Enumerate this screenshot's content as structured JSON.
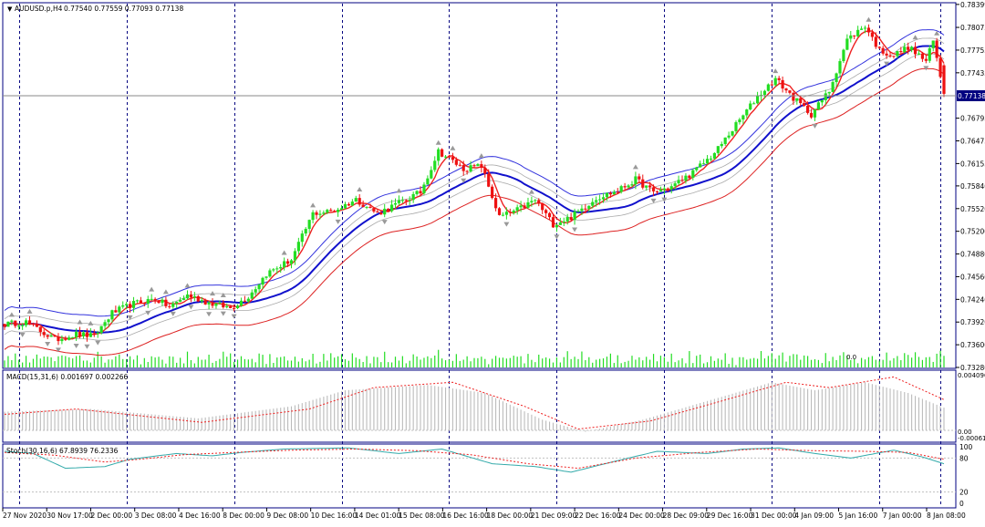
{
  "main_pane": {
    "symbol_text": "AUDUSD.p,H4",
    "ohlc_text": "0.77540 0.77559 0.77093 0.77138",
    "current_price_label": "0.77138",
    "volume_label": "0.0",
    "price_ticks": [
      "0.78399",
      "0.78075",
      "0.77755",
      "0.77435",
      "0.77138",
      "0.76795",
      "0.76475",
      "0.76155",
      "0.75840",
      "0.75520",
      "0.75200",
      "0.74880",
      "0.74560",
      "0.74240",
      "0.73920",
      "0.73600",
      "0.73280"
    ]
  },
  "macd_pane": {
    "label": "MACD(15,31,6) 0.001697 0.002266",
    "ticks": [
      "0.004096",
      "0.00",
      "-0.000612"
    ]
  },
  "stoch_pane": {
    "label": "Stoch(30,16,6) 67.8939 76.2336",
    "ticks": [
      "100",
      "80",
      "20",
      "0"
    ]
  },
  "time_axis": {
    "labels": [
      "27 Nov 2020",
      "30 Nov 17:00",
      "2 Dec 00:00",
      "3 Dec 08:00",
      "4 Dec 16:00",
      "8 Dec 00:00",
      "9 Dec 08:00",
      "10 Dec 16:00",
      "14 Dec 01:00",
      "15 Dec 08:00",
      "16 Dec 16:00",
      "18 Dec 00:00",
      "21 Dec 09:00",
      "22 Dec 16:00",
      "24 Dec 00:00",
      "28 Dec 09:00",
      "29 Dec 16:00",
      "31 Dec 00:00",
      "4 Jan 09:00",
      "5 Jan 16:00",
      "7 Jan 00:00",
      "8 Jan 08:00"
    ]
  },
  "colors": {
    "bull": "#22dd22",
    "bear": "#ee1111",
    "blue_ma": "#1111cc",
    "red_ma": "#ee2222",
    "envelope_blue": "#3333dd",
    "envelope_gray": "#aaaaaa",
    "envelope_red": "#dd2222",
    "signal_line": "#ee2222",
    "macd_bars": "#bbbbbb",
    "stoch_main": "#33aaaa",
    "separator": "#000080"
  },
  "chart_data": {
    "type": "candlestick",
    "symbol": "AUDUSD.p",
    "timeframe": "H4",
    "last_bar": {
      "open": 0.7754,
      "high": 0.77559,
      "low": 0.77093,
      "close": 0.77138
    },
    "price_range": [
      0.7328,
      0.7841
    ],
    "price_waypoints": [
      [
        0,
        0.7389
      ],
      [
        6,
        0.7392
      ],
      [
        14,
        0.7367
      ],
      [
        20,
        0.7375
      ],
      [
        25,
        0.7372
      ],
      [
        30,
        0.7405
      ],
      [
        36,
        0.7418
      ],
      [
        42,
        0.7425
      ],
      [
        46,
        0.7413
      ],
      [
        51,
        0.743
      ],
      [
        57,
        0.7419
      ],
      [
        63,
        0.7412
      ],
      [
        68,
        0.7428
      ],
      [
        73,
        0.746
      ],
      [
        80,
        0.748
      ],
      [
        86,
        0.7545
      ],
      [
        92,
        0.7549
      ],
      [
        98,
        0.7565
      ],
      [
        104,
        0.7545
      ],
      [
        110,
        0.756
      ],
      [
        116,
        0.7575
      ],
      [
        121,
        0.7633
      ],
      [
        128,
        0.7608
      ],
      [
        133,
        0.7612
      ],
      [
        138,
        0.754
      ],
      [
        143,
        0.755
      ],
      [
        148,
        0.7564
      ],
      [
        153,
        0.753
      ],
      [
        158,
        0.754
      ],
      [
        165,
        0.7567
      ],
      [
        171,
        0.7577
      ],
      [
        176,
        0.7593
      ],
      [
        181,
        0.7575
      ],
      [
        186,
        0.7583
      ],
      [
        192,
        0.7603
      ],
      [
        198,
        0.763
      ],
      [
        204,
        0.767
      ],
      [
        210,
        0.771
      ],
      [
        215,
        0.7735
      ],
      [
        220,
        0.7708
      ],
      [
        225,
        0.7685
      ],
      [
        230,
        0.7718
      ],
      [
        235,
        0.779
      ],
      [
        240,
        0.781
      ],
      [
        244,
        0.7775
      ],
      [
        248,
        0.7768
      ],
      [
        252,
        0.778
      ],
      [
        257,
        0.776
      ],
      [
        259,
        0.7788
      ],
      [
        262,
        0.7714
      ]
    ],
    "volume_profile": [
      0.28,
      0.62,
      0.12,
      0.3,
      0.05,
      0.18,
      0.45,
      0.1,
      0.22,
      0.35,
      0.08,
      0.55,
      0.2,
      0.15,
      0.4,
      0.1,
      0.26,
      0.6,
      0.05,
      0.32
    ],
    "macd_histogram_waypoints": [
      [
        0,
        0.0014
      ],
      [
        24,
        0.0016
      ],
      [
        54,
        0.0009
      ],
      [
        80,
        0.0018
      ],
      [
        95,
        0.003
      ],
      [
        118,
        0.0034
      ],
      [
        134,
        0.0028
      ],
      [
        150,
        0.0008
      ],
      [
        162,
        -0.0001
      ],
      [
        178,
        0.0008
      ],
      [
        196,
        0.0022
      ],
      [
        214,
        0.0036
      ],
      [
        226,
        0.003
      ],
      [
        240,
        0.0036
      ],
      [
        252,
        0.0028
      ],
      [
        262,
        0.0017
      ]
    ],
    "macd_signal_waypoints": [
      [
        0,
        0.0012
      ],
      [
        20,
        0.0016
      ],
      [
        55,
        0.0006
      ],
      [
        85,
        0.0016
      ],
      [
        103,
        0.0032
      ],
      [
        125,
        0.0036
      ],
      [
        145,
        0.0018
      ],
      [
        160,
        0.0001
      ],
      [
        180,
        0.0007
      ],
      [
        200,
        0.0022
      ],
      [
        218,
        0.0036
      ],
      [
        230,
        0.0032
      ],
      [
        248,
        0.004
      ],
      [
        262,
        0.0023
      ]
    ],
    "stoch_main_waypoints": [
      [
        0,
        92
      ],
      [
        8,
        88
      ],
      [
        17,
        62
      ],
      [
        28,
        65
      ],
      [
        35,
        78
      ],
      [
        48,
        88
      ],
      [
        58,
        84
      ],
      [
        66,
        90
      ],
      [
        78,
        96
      ],
      [
        96,
        98
      ],
      [
        110,
        88
      ],
      [
        122,
        96
      ],
      [
        136,
        70
      ],
      [
        148,
        65
      ],
      [
        158,
        55
      ],
      [
        170,
        74
      ],
      [
        182,
        92
      ],
      [
        196,
        88
      ],
      [
        206,
        96
      ],
      [
        216,
        98
      ],
      [
        226,
        88
      ],
      [
        236,
        80
      ],
      [
        248,
        94
      ],
      [
        256,
        82
      ],
      [
        262,
        70
      ]
    ],
    "stoch_signal_waypoints": [
      [
        0,
        90
      ],
      [
        14,
        85
      ],
      [
        28,
        73
      ],
      [
        38,
        78
      ],
      [
        50,
        86
      ],
      [
        64,
        90
      ],
      [
        80,
        94
      ],
      [
        98,
        96
      ],
      [
        115,
        93
      ],
      [
        130,
        86
      ],
      [
        146,
        70
      ],
      [
        160,
        62
      ],
      [
        176,
        80
      ],
      [
        194,
        90
      ],
      [
        210,
        96
      ],
      [
        226,
        93
      ],
      [
        240,
        92
      ],
      [
        252,
        90
      ],
      [
        262,
        78
      ]
    ]
  }
}
